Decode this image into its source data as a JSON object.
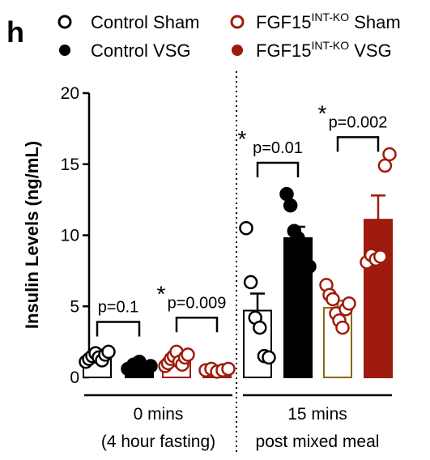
{
  "panel_label": "h",
  "chart_data": {
    "type": "bar",
    "ylabel": "Insulin Levels (ng/mL)",
    "ylim": [
      0,
      20
    ],
    "yticks": [
      0,
      5,
      10,
      15,
      20
    ],
    "ytick_labels": [
      "0",
      "5",
      "10",
      "15",
      "20"
    ],
    "legend": [
      {
        "label": "Control Sham",
        "sup": "",
        "suffix": "",
        "marker": "open",
        "color": "#000000"
      },
      {
        "label": "Control VSG",
        "sup": "",
        "suffix": "",
        "marker": "filled",
        "color": "#000000"
      },
      {
        "label": "FGF15",
        "sup": "INT-KO",
        "suffix": " Sham",
        "marker": "open",
        "color": "#9e1b0d"
      },
      {
        "label": "FGF15",
        "sup": "INT-KO",
        "suffix": " VSG",
        "marker": "filled",
        "color": "#9e1b0d"
      }
    ],
    "groups": [
      {
        "label_line1": "0 mins",
        "label_line2": "(4 hour fasting)"
      },
      {
        "label_line1": "15 mins",
        "label_line2": "post mixed meal"
      }
    ],
    "bars": [
      {
        "group": 0,
        "series": "Control Sham",
        "mean": 1.4,
        "sem": 0.2,
        "fill": "#ffffff",
        "edge": "#000000",
        "marker_fill": "#ffffff",
        "marker_edge": "#000000",
        "points": [
          1.1,
          1.3,
          1.5,
          1.7,
          1.4,
          1.2,
          1.6,
          1.8
        ]
      },
      {
        "group": 0,
        "series": "Control VSG",
        "mean": 0.8,
        "sem": 0.15,
        "fill": "#000000",
        "edge": "#000000",
        "marker_fill": "#000000",
        "marker_edge": "#000000",
        "points": [
          0.6,
          0.9,
          1.1,
          0.7,
          0.8
        ]
      },
      {
        "group": 0,
        "series": "FGF15 INT-KO Sham",
        "mean": 1.2,
        "sem": 0.15,
        "fill": "#ffffff",
        "edge": "#9e1b0d",
        "marker_fill": "#ffffff",
        "marker_edge": "#9e1b0d",
        "points": [
          0.8,
          1.0,
          1.3,
          1.5,
          1.8,
          1.1,
          0.9,
          1.4,
          1.6
        ]
      },
      {
        "group": 0,
        "series": "FGF15 INT-KO VSG",
        "mean": 0.5,
        "sem": 0.1,
        "fill": "#9e1b0d",
        "edge": "#9e1b0d",
        "marker_fill": "#ffffff",
        "marker_edge": "#9e1b0d",
        "points": [
          0.5,
          0.6,
          0.4,
          0.5,
          0.6
        ]
      },
      {
        "group": 1,
        "series": "Control Sham",
        "mean": 4.7,
        "sem": 1.2,
        "fill": "#ffffff",
        "edge": "#000000",
        "marker_fill": "#ffffff",
        "marker_edge": "#000000",
        "points": [
          10.5,
          6.7,
          4.2,
          3.5,
          1.5,
          1.4
        ]
      },
      {
        "group": 1,
        "series": "Control VSG",
        "mean": 9.8,
        "sem": 0.8,
        "fill": "#000000",
        "edge": "#000000",
        "marker_fill": "#000000",
        "marker_edge": "#000000",
        "points": [
          12.9,
          12.1,
          10.3,
          9.8,
          8.8,
          7.5,
          7.8
        ]
      },
      {
        "group": 1,
        "series": "FGF15 INT-KO Sham",
        "mean": 4.9,
        "sem": 0.5,
        "fill": "#ffffff",
        "edge": "#8b6914",
        "marker_fill": "#ffffff",
        "marker_edge": "#9e1b0d",
        "points": [
          6.5,
          5.8,
          5.5,
          4.5,
          4.0,
          3.5,
          4.8,
          5.2
        ]
      },
      {
        "group": 1,
        "series": "FGF15 INT-KO VSG",
        "mean": 11.1,
        "sem": 1.7,
        "fill": "#9e1b0d",
        "edge": "#9e1b0d",
        "marker_fill": "#ffffff",
        "marker_edge": "#9e1b0d",
        "points": [
          8.1,
          8.6,
          8.3,
          8.5,
          14.9,
          15.7
        ]
      }
    ],
    "annotations": [
      {
        "text": "p=0.1",
        "star": false,
        "from_bar": 0,
        "to_bar": 1,
        "level": 3.9
      },
      {
        "text": "p=0.009",
        "star": true,
        "from_bar": 2,
        "to_bar": 3,
        "level": 4.2
      },
      {
        "text": "p=0.01",
        "star": true,
        "from_bar": 4,
        "to_bar": 5,
        "level": 15.1
      },
      {
        "text": "p=0.002",
        "star": true,
        "from_bar": 6,
        "to_bar": 7,
        "level": 16.9
      }
    ],
    "star_text": "*",
    "grid": false
  }
}
